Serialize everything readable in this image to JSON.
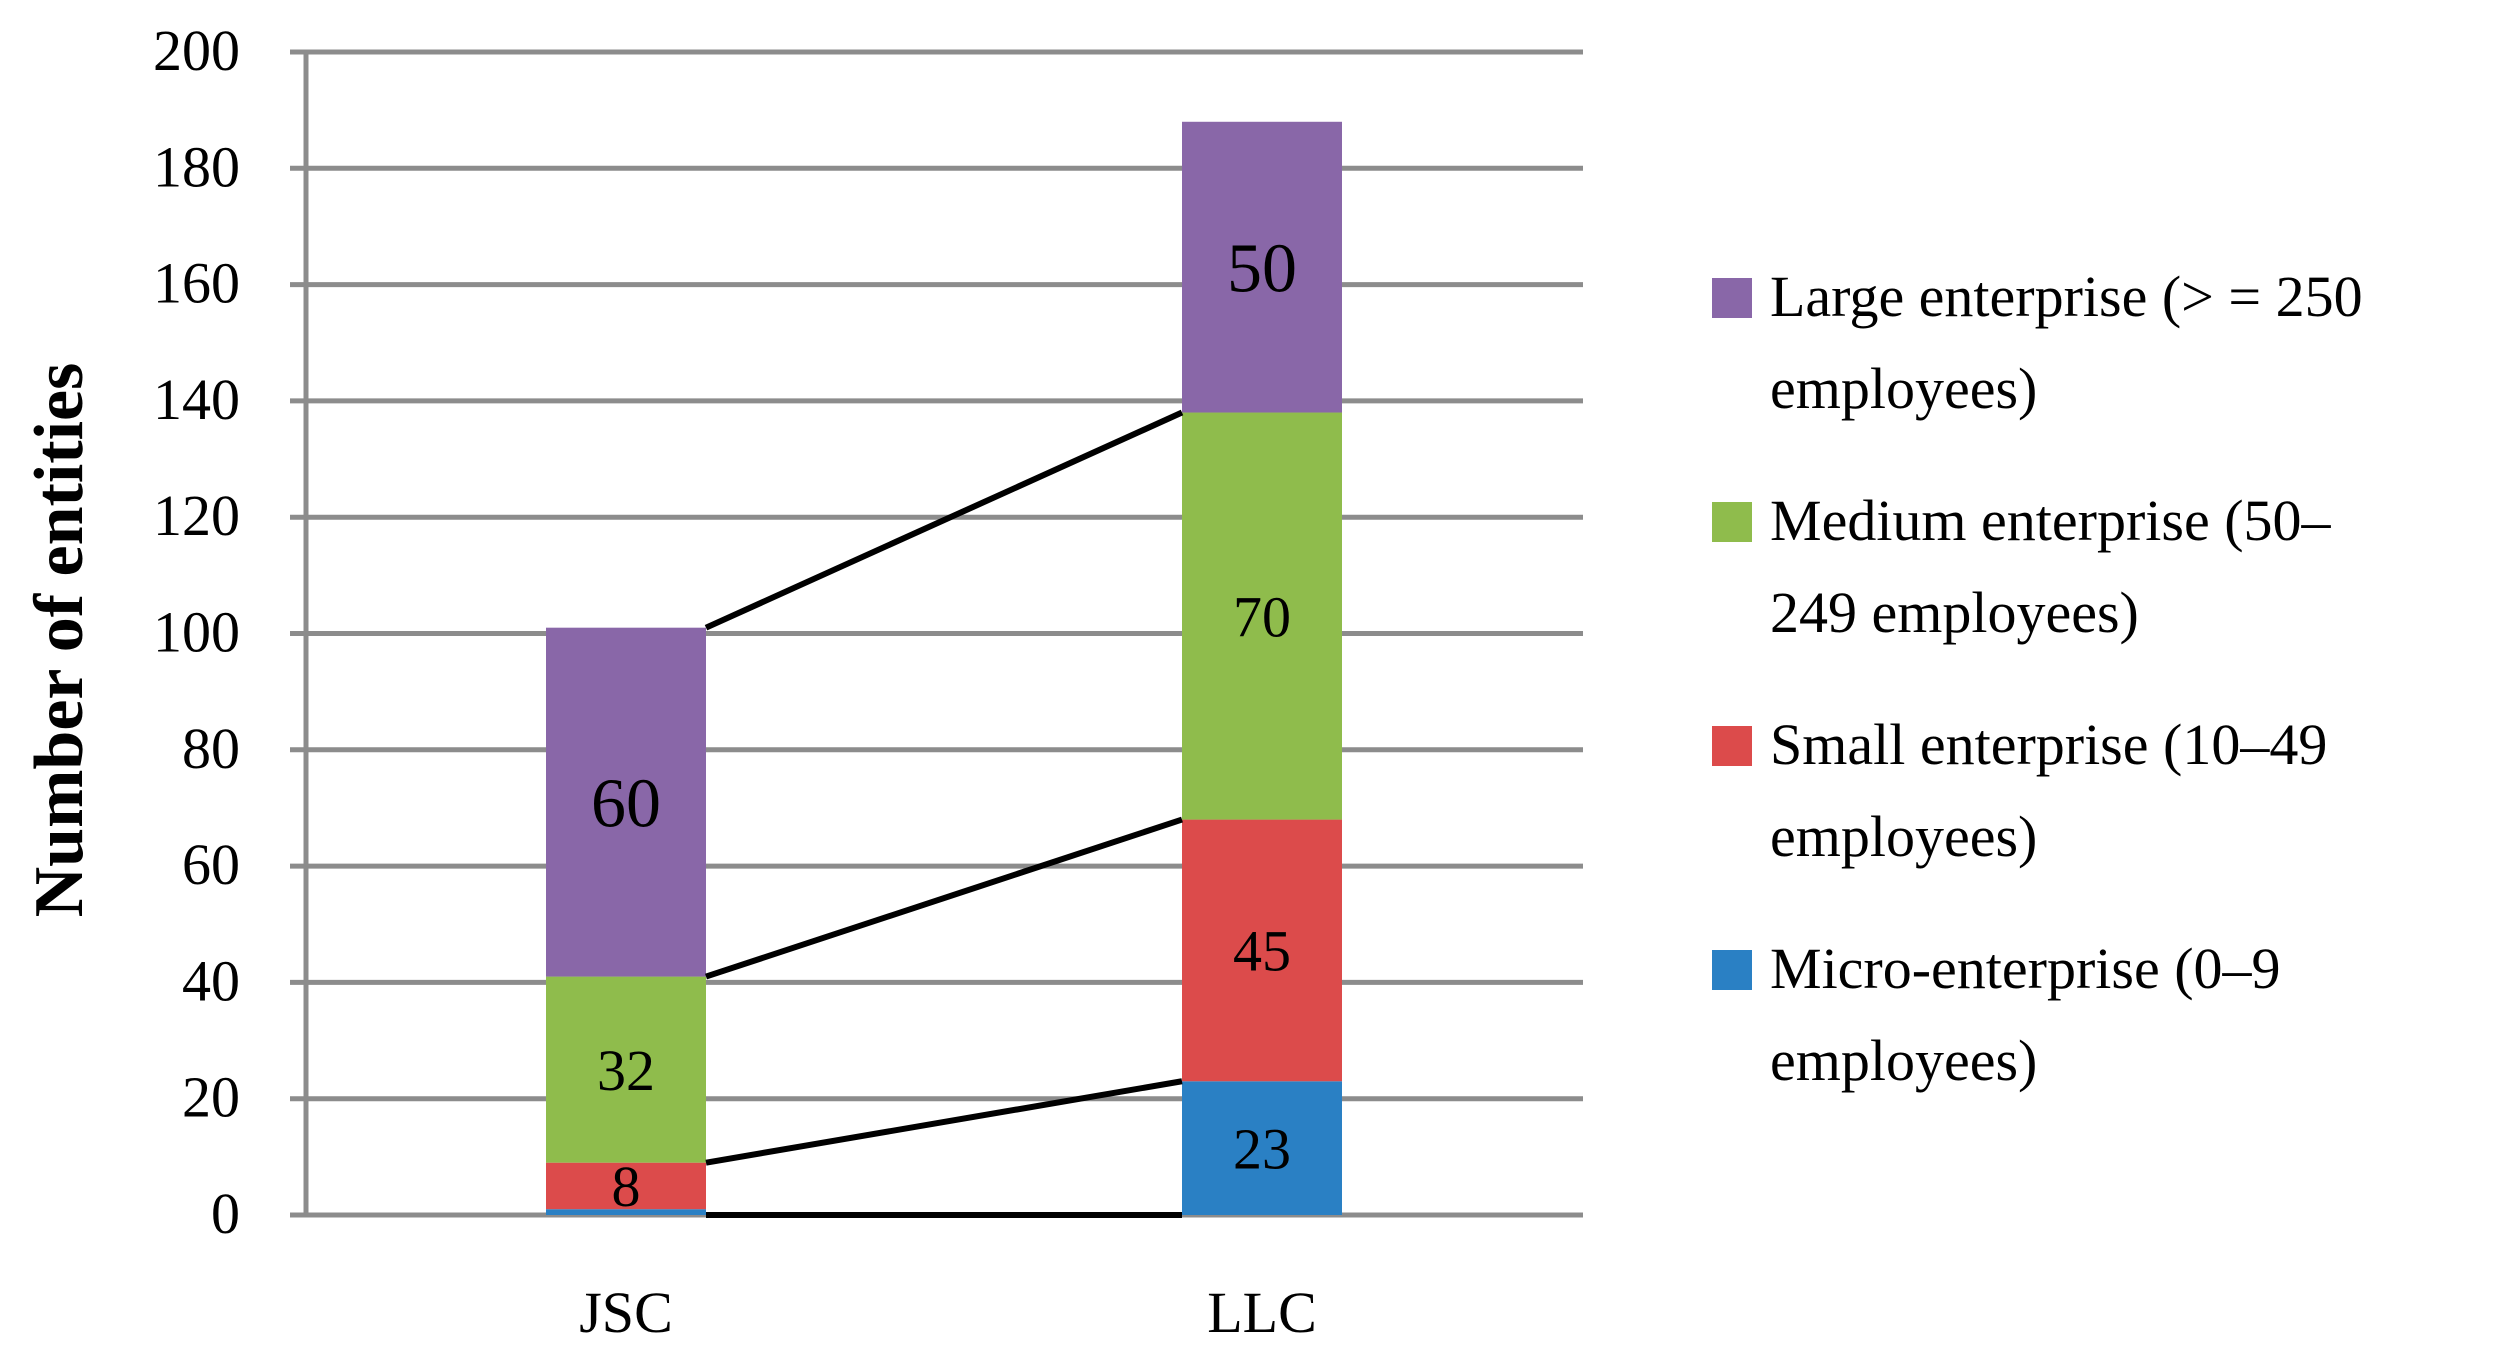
{
  "chart_data": {
    "type": "bar",
    "stacked": true,
    "title": "",
    "xlabel": "",
    "ylabel": "Number of entities",
    "ylim": [
      0,
      200
    ],
    "ytick_step": 20,
    "yticks": [
      "0",
      "20",
      "40",
      "60",
      "80",
      "100",
      "120",
      "140",
      "160",
      "180",
      "200"
    ],
    "grid": true,
    "legend_position": "right",
    "connector_lines": true,
    "categories": [
      "JSC",
      "LLC"
    ],
    "series": [
      {
        "name": "Micro-enterprise (0–9 employees)",
        "legend_lines": [
          "Micro-enterprise (0–9",
          "employees)"
        ],
        "color": "#2A80C4",
        "values": [
          1,
          23
        ],
        "labels": [
          "",
          "23"
        ]
      },
      {
        "name": "Small enterprise (10–49 employees)",
        "legend_lines": [
          "Small enterprise (10–49",
          "employees)"
        ],
        "color": "#DC4B4B",
        "values": [
          8,
          45
        ],
        "labels": [
          "8",
          "45"
        ]
      },
      {
        "name": "Medium enterprise (50–249 employees)",
        "legend_lines": [
          "Medium enterprise (50–",
          "249 employees)"
        ],
        "color": "#8FBC4C",
        "values": [
          32,
          70
        ],
        "labels": [
          "32",
          "70"
        ]
      },
      {
        "name": "Large enterprise (> = 250 employees)",
        "legend_lines": [
          "Large enterprise (> = 250",
          "employees)"
        ],
        "color": "#8967A8",
        "values": [
          60,
          50
        ],
        "labels": [
          "60",
          "50"
        ]
      }
    ]
  }
}
